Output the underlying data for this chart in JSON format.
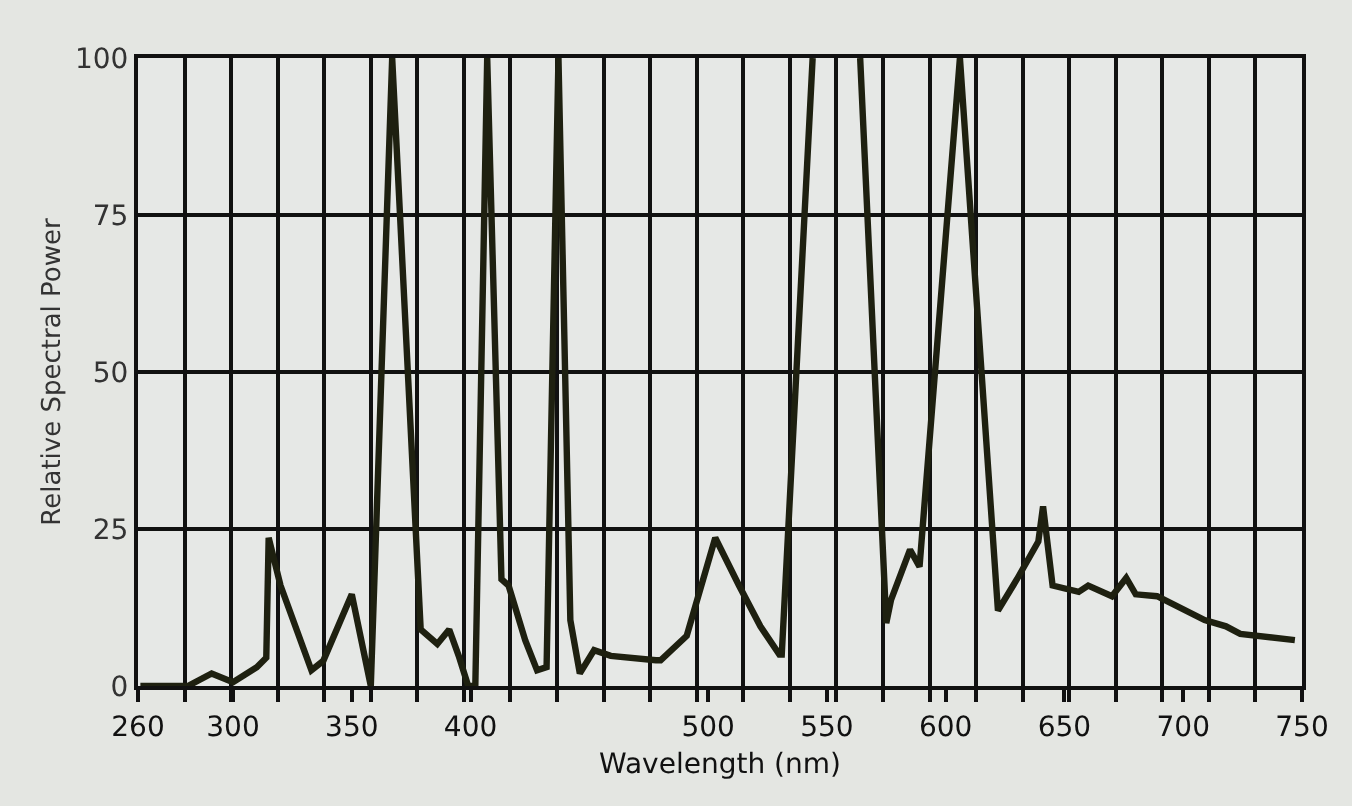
{
  "chart_data": {
    "type": "line",
    "xlabel": "Wavelength (nm)",
    "ylabel": "Relative Spectral Power",
    "x": [
      261,
      281,
      291,
      300,
      310,
      314,
      315,
      320,
      333,
      338,
      350,
      358,
      367,
      379,
      386,
      391,
      395,
      399,
      402,
      407,
      413,
      416,
      423,
      428,
      432,
      437,
      442,
      446,
      452,
      459,
      478,
      480,
      491,
      503,
      513,
      522,
      530,
      531,
      544,
      554,
      564,
      575,
      577,
      585,
      589,
      606,
      622,
      630,
      639,
      641,
      645,
      656,
      660,
      670,
      676,
      680,
      689,
      709,
      718,
      724,
      747
    ],
    "series": [
      {
        "color": "#1e2010",
        "values": [
          0,
          0,
          2,
          0.6,
          3,
          4.5,
          23.6,
          16,
          2.5,
          4,
          14.6,
          0,
          100,
          9,
          6.7,
          9,
          4.8,
          0,
          0,
          100,
          17,
          16,
          7.3,
          2.5,
          3,
          100,
          10.5,
          2,
          5.7,
          4.8,
          4.1,
          4.1,
          8,
          23.6,
          16,
          9.5,
          5,
          5,
          100,
          null,
          100,
          10,
          13.7,
          21.7,
          19,
          100,
          12,
          17,
          23,
          28.6,
          16,
          15,
          16,
          14.3,
          17.2,
          14.6,
          14.3,
          10.5,
          9.5,
          8.3,
          7.3
        ]
      }
    ],
    "xlim": [
      260,
      750
    ],
    "ylim": [
      0,
      100
    ],
    "xticks": [
      260,
      {
        "value": 279.6,
        "label": null
      },
      {
        "value": 299.2,
        "label": null
      },
      300,
      {
        "value": 318.8,
        "label": null
      },
      {
        "value": 338.4,
        "label": null
      },
      350,
      {
        "value": 358,
        "label": null
      },
      {
        "value": 377.6,
        "label": null
      },
      {
        "value": 397.2,
        "label": null
      },
      400,
      {
        "value": 416.8,
        "label": null
      },
      {
        "value": 436.4,
        "label": null
      },
      {
        "value": 456,
        "label": null
      },
      {
        "value": 475.6,
        "label": null
      },
      {
        "value": 495.2,
        "label": null
      },
      500,
      {
        "value": 514.8,
        "label": null
      },
      {
        "value": 534.4,
        "label": null
      },
      550,
      {
        "value": 554,
        "label": null
      },
      {
        "value": 573.6,
        "label": null
      },
      {
        "value": 593.2,
        "label": null
      },
      600,
      {
        "value": 612.8,
        "label": null
      },
      {
        "value": 632.4,
        "label": null
      },
      650,
      {
        "value": 652,
        "label": null
      },
      {
        "value": 671.6,
        "label": null
      },
      {
        "value": 691.2,
        "label": null
      },
      700,
      {
        "value": 710.8,
        "label": null
      },
      {
        "value": 730.4,
        "label": null
      },
      750
    ],
    "yticks": [
      0,
      25,
      50,
      75,
      100
    ],
    "grid": true,
    "marker": "none",
    "line_style": "solid"
  }
}
